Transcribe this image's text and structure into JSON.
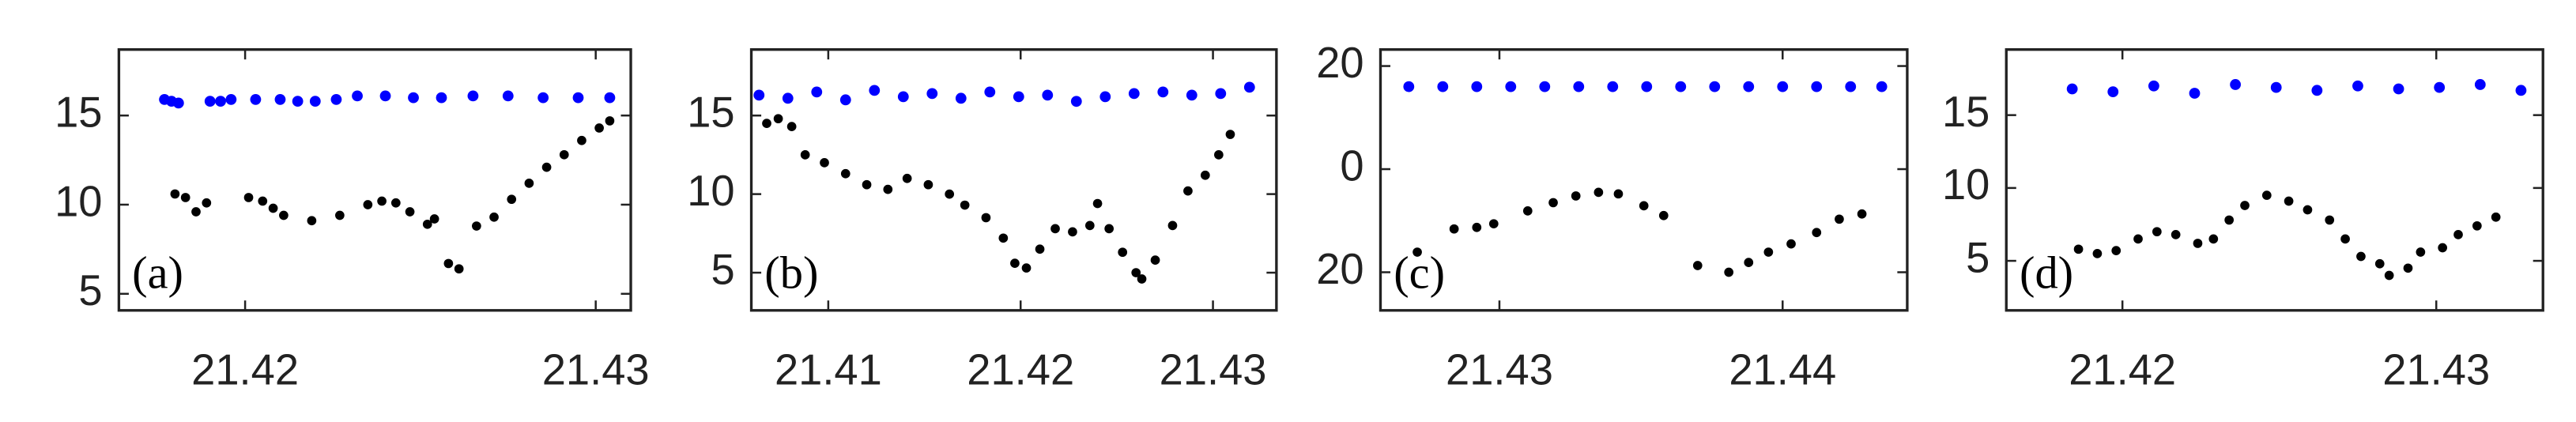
{
  "chart_data": [
    {
      "type": "scatter",
      "annotation": "(a)",
      "xlim": [
        21.4164,
        21.431
      ],
      "ylim": [
        4.07,
        18.7
      ],
      "xticks": [
        21.42,
        21.43
      ],
      "yticks": [
        5,
        10,
        15
      ],
      "series": [
        {
          "color": "#0000ff",
          "x": [
            21.4177,
            21.4179,
            21.4181,
            21.419,
            21.4193,
            21.4196,
            21.4203,
            21.421,
            21.4215,
            21.422,
            21.4226,
            21.4232,
            21.424,
            21.4248,
            21.4256,
            21.4265,
            21.4275,
            21.4285,
            21.4295,
            21.4304
          ],
          "values": [
            15.9,
            15.8,
            15.7,
            15.8,
            15.8,
            15.9,
            15.9,
            15.9,
            15.8,
            15.8,
            15.9,
            16.1,
            16.1,
            16.0,
            16.0,
            16.1,
            16.1,
            16.0,
            16.0,
            16.0
          ]
        },
        {
          "color": "#000000",
          "x": [
            21.418,
            21.4183,
            21.4186,
            21.4189,
            21.4201,
            21.4205,
            21.4208,
            21.4211,
            21.4219,
            21.4227,
            21.4235,
            21.4239,
            21.4243,
            21.4247,
            21.4252,
            21.4254,
            21.4258,
            21.4261,
            21.4266,
            21.4271,
            21.4276,
            21.4281,
            21.4286,
            21.4291,
            21.4296,
            21.4301,
            21.4304
          ],
          "values": [
            10.6,
            10.4,
            9.6,
            10.1,
            10.4,
            10.2,
            9.8,
            9.4,
            9.1,
            9.4,
            10.0,
            10.2,
            10.1,
            9.6,
            8.9,
            9.2,
            6.7,
            6.4,
            8.8,
            9.3,
            10.3,
            11.2,
            12.1,
            12.8,
            13.6,
            14.3,
            14.7
          ]
        }
      ]
    },
    {
      "type": "scatter",
      "annotation": "(b)",
      "xlim": [
        21.406,
        21.4333
      ],
      "ylim": [
        2.6,
        19.2
      ],
      "xticks": [
        21.41,
        21.42,
        21.43
      ],
      "yticks": [
        5,
        10,
        15
      ],
      "series": [
        {
          "color": "#0000ff",
          "x": [
            21.4064,
            21.4079,
            21.4094,
            21.4109,
            21.4124,
            21.4139,
            21.4154,
            21.4169,
            21.4184,
            21.4199,
            21.4214,
            21.4229,
            21.4244,
            21.4259,
            21.4274,
            21.4289,
            21.4304,
            21.4319
          ],
          "values": [
            16.3,
            16.1,
            16.5,
            16.0,
            16.6,
            16.2,
            16.4,
            16.1,
            16.5,
            16.2,
            16.3,
            15.9,
            16.2,
            16.4,
            16.5,
            16.3,
            16.4,
            16.8
          ]
        },
        {
          "color": "#000000",
          "x": [
            21.4068,
            21.4074,
            21.4081,
            21.4088,
            21.4098,
            21.4109,
            21.412,
            21.4131,
            21.4141,
            21.4152,
            21.4163,
            21.4171,
            21.4182,
            21.4191,
            21.4197,
            21.4203,
            21.421,
            21.4218,
            21.4227,
            21.4236,
            21.424,
            21.4246,
            21.4253,
            21.426,
            21.4263,
            21.427,
            21.4279,
            21.4287,
            21.4296,
            21.4303,
            21.4309
          ],
          "values": [
            14.5,
            14.8,
            14.3,
            12.5,
            12.0,
            11.3,
            10.6,
            10.3,
            11.0,
            10.6,
            10.0,
            9.3,
            8.5,
            7.2,
            5.6,
            5.3,
            6.5,
            7.8,
            7.6,
            8.0,
            9.4,
            7.8,
            6.3,
            5.0,
            4.6,
            5.8,
            8.0,
            10.2,
            11.2,
            12.5,
            13.8
          ]
        }
      ]
    },
    {
      "type": "scatter",
      "annotation": "(c)",
      "xlim": [
        21.4258,
        21.4444
      ],
      "ylim": [
        -27.4,
        23.2
      ],
      "xticks": [
        21.43,
        21.44
      ],
      "yticks": [
        {
          "value": -20,
          "label": "20"
        },
        0,
        20
      ],
      "series": [
        {
          "color": "#0000ff",
          "x": [
            21.4268,
            21.428,
            21.4292,
            21.4304,
            21.4316,
            21.4328,
            21.434,
            21.4352,
            21.4364,
            21.4376,
            21.4388,
            21.44,
            21.4412,
            21.4424,
            21.4435
          ],
          "values": [
            16,
            16,
            16,
            16,
            16,
            16,
            16,
            16,
            16,
            16,
            16,
            16,
            16,
            16,
            16
          ]
        },
        {
          "color": "#000000",
          "x": [
            21.4271,
            21.4284,
            21.4292,
            21.4298,
            21.431,
            21.4319,
            21.4327,
            21.4335,
            21.4342,
            21.4351,
            21.4358,
            21.437,
            21.4381,
            21.4388,
            21.4395,
            21.4403,
            21.4412,
            21.442,
            21.4428
          ],
          "values": [
            -16.1,
            -11.6,
            -11.3,
            -10.6,
            -8.1,
            -6.5,
            -5.2,
            -4.5,
            -4.8,
            -7.1,
            -9.0,
            -18.7,
            -20.0,
            -18.1,
            -16.1,
            -14.5,
            -12.3,
            -9.7,
            -8.7
          ]
        }
      ]
    },
    {
      "type": "scatter",
      "annotation": "(d)",
      "xlim": [
        21.4163,
        21.4334
      ],
      "ylim": [
        1.6,
        19.5
      ],
      "xticks": [
        21.42,
        21.43
      ],
      "yticks": [
        5,
        10,
        15
      ],
      "series": [
        {
          "color": "#0000ff",
          "x": [
            21.4184,
            21.4197,
            21.421,
            21.4223,
            21.4236,
            21.4249,
            21.4262,
            21.4275,
            21.4288,
            21.4301,
            21.4314,
            21.4327
          ],
          "values": [
            16.8,
            16.6,
            17.0,
            16.5,
            17.1,
            16.9,
            16.7,
            17.0,
            16.8,
            16.9,
            17.1,
            16.7
          ]
        },
        {
          "color": "#000000",
          "x": [
            21.4186,
            21.4192,
            21.4198,
            21.4205,
            21.4211,
            21.4217,
            21.4224,
            21.4229,
            21.4234,
            21.4239,
            21.4246,
            21.4253,
            21.4259,
            21.4266,
            21.4271,
            21.4276,
            21.4282,
            21.4285,
            21.4291,
            21.4295,
            21.4302,
            21.4307,
            21.4313,
            21.4319
          ],
          "values": [
            5.8,
            5.5,
            5.7,
            6.5,
            7.0,
            6.8,
            6.2,
            6.5,
            7.8,
            8.8,
            9.5,
            9.1,
            8.5,
            7.8,
            6.5,
            5.3,
            4.8,
            4.0,
            4.5,
            5.6,
            5.9,
            6.8,
            7.4,
            8.0
          ]
        }
      ]
    }
  ]
}
